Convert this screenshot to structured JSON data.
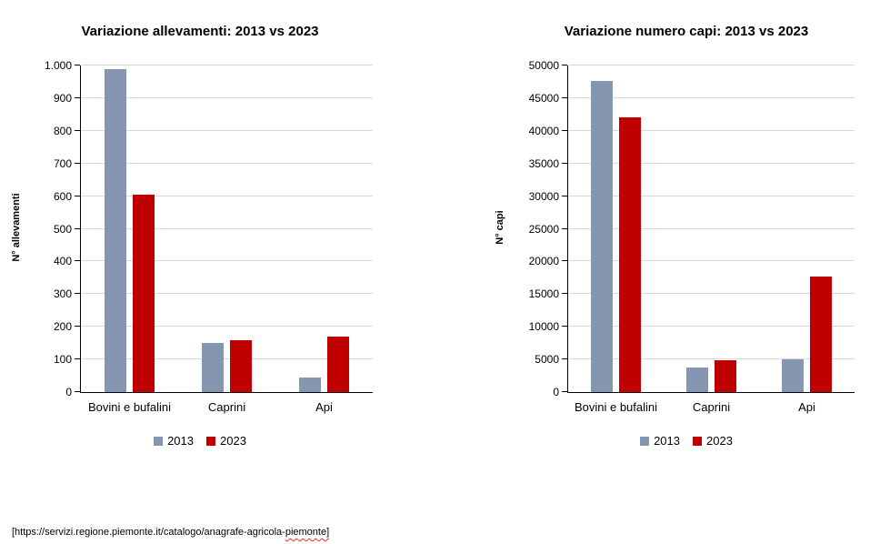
{
  "colors": {
    "series_2013": "#8496B0",
    "series_2023": "#C00000",
    "gridline": "#D9D9D9",
    "axis": "#000000",
    "spellcheck_underline": "#E03030",
    "background": "#FFFFFF"
  },
  "chart_data": [
    {
      "type": "bar",
      "title": "Variazione allevamenti: 2013 vs 2023",
      "xlabel": "",
      "ylabel": "N° allevamenti",
      "categories": [
        "Bovini e bufalini",
        "Caprini",
        "Api"
      ],
      "series": [
        {
          "name": "2013",
          "color": "#8496B0",
          "values": [
            990,
            150,
            45
          ]
        },
        {
          "name": "2023",
          "color": "#C00000",
          "values": [
            605,
            158,
            170
          ]
        }
      ],
      "ylim": [
        0,
        1000
      ],
      "ytick_step": 100,
      "ytick_labels": [
        "0",
        "100",
        "200",
        "300",
        "400",
        "500",
        "600",
        "700",
        "800",
        "900",
        "1.000"
      ],
      "grid": true,
      "legend_position": "bottom"
    },
    {
      "type": "bar",
      "title": "Variazione numero capi: 2013 vs 2023",
      "xlabel": "",
      "ylabel": "N° capi",
      "categories": [
        "Bovini e bufalini",
        "Caprini",
        "Api"
      ],
      "series": [
        {
          "name": "2013",
          "color": "#8496B0",
          "values": [
            47700,
            3700,
            5000
          ]
        },
        {
          "name": "2023",
          "color": "#C00000",
          "values": [
            42000,
            4900,
            17700
          ]
        }
      ],
      "ylim": [
        0,
        50000
      ],
      "ytick_step": 5000,
      "ytick_labels": [
        "0",
        "5000",
        "10000",
        "15000",
        "20000",
        "25000",
        "30000",
        "35000",
        "40000",
        "45000",
        "50000"
      ],
      "grid": true,
      "legend_position": "bottom"
    }
  ],
  "footer": {
    "url_prefix": "[https://servizi.regione.piemonte.it/catalogo/anagrafe-agricola-",
    "url_flagged": "piemonte]"
  }
}
